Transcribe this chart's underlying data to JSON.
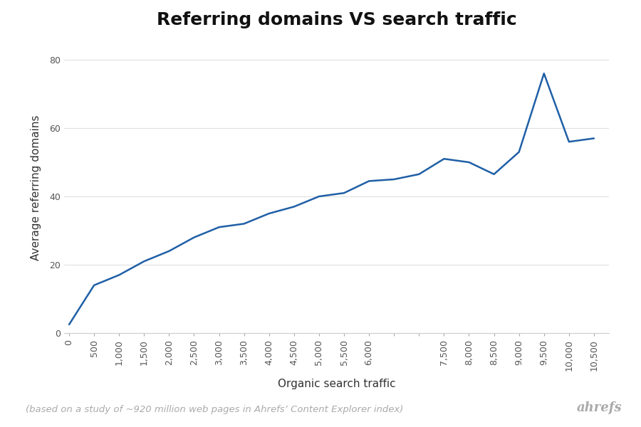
{
  "title": "Referring domains VS search traffic",
  "xlabel": "Organic search traffic",
  "ylabel": "Average referring domains",
  "footnote": "(based on a study of ~920 million web pages in Ahrefs’ Content Explorer index)",
  "brand": "ahrefs",
  "line_color": "#1f5fa6",
  "background_color": "#ffffff",
  "x": [
    0,
    500,
    1000,
    1500,
    2000,
    2500,
    3000,
    3500,
    4000,
    4500,
    5000,
    5500,
    6000,
    6500,
    7000,
    7500,
    8000,
    8500,
    9000,
    9500,
    10000,
    10500
  ],
  "y": [
    2.5,
    14,
    17,
    21,
    24,
    28,
    31,
    32,
    35,
    37,
    40,
    41,
    44.5,
    45,
    46.5,
    51,
    50,
    46.5,
    53,
    76,
    56,
    57
  ],
  "xlim": [
    -100,
    10800
  ],
  "ylim": [
    0,
    85
  ],
  "yticks": [
    0,
    20,
    40,
    60,
    80
  ],
  "xticks": [
    0,
    500,
    1000,
    1500,
    2000,
    2500,
    3000,
    3500,
    4000,
    4500,
    5000,
    5500,
    6000,
    6500,
    7000,
    7500,
    8000,
    8500,
    9000,
    9500,
    10000,
    10500
  ],
  "xtick_labels": [
    "0",
    "500",
    "1,000",
    "1,500",
    "2,000",
    "2,500",
    "3,000",
    "3,500",
    "4,000",
    "4,500",
    "5,000",
    "5,500",
    "6,000",
    "",
    "",
    "7,500",
    "8,000",
    "8,500",
    "9,000",
    "9,500",
    "10,000",
    "10,500"
  ],
  "grid_color": "#e0e0e0",
  "title_fontsize": 18,
  "label_fontsize": 11,
  "tick_fontsize": 9,
  "footnote_fontsize": 9.5,
  "brand_fontsize": 13
}
